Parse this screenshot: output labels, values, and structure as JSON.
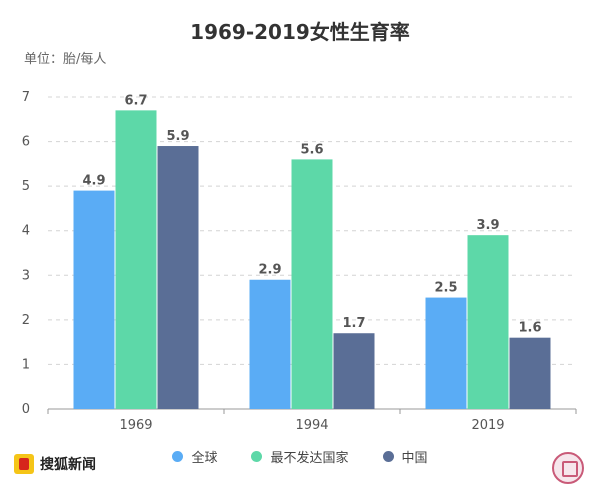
{
  "chart_data": {
    "type": "bar",
    "title": "1969-2019女性生育率",
    "subtitle": "单位：胎/每人",
    "categories": [
      "1969",
      "1994",
      "2019"
    ],
    "series": [
      {
        "name": "全球",
        "values": [
          4.9,
          2.9,
          2.5
        ],
        "color": "#5aacf5"
      },
      {
        "name": "最不发达国家",
        "values": [
          6.7,
          5.6,
          3.9
        ],
        "color": "#5dd8a8"
      },
      {
        "name": "中国",
        "values": [
          5.9,
          1.7,
          1.6
        ],
        "color": "#5a6e96"
      }
    ],
    "ylim": [
      0,
      7
    ],
    "yticks": [
      0,
      1,
      2,
      3,
      4,
      5,
      6,
      7
    ],
    "grid": true,
    "legend_position": "bottom"
  },
  "brand": {
    "name": "搜狐新闻",
    "icon": "sohu-logo-icon"
  },
  "watermark": {
    "icon": "zhihu-watermark-icon"
  }
}
